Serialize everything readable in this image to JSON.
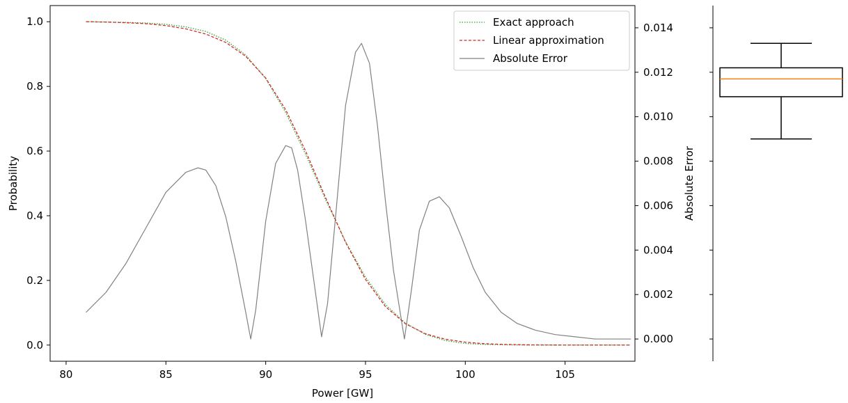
{
  "chart_data": [
    {
      "type": "line",
      "xlabel": "Power [GW]",
      "ylabel": "Probability",
      "y2label": "Absolute Error",
      "xlim": [
        79.2,
        108.5
      ],
      "ylim": [
        -0.05,
        1.05
      ],
      "y2lim": [
        -0.001,
        0.015
      ],
      "xticks": [
        80,
        85,
        90,
        95,
        100,
        105
      ],
      "xtick_labels": [
        "80",
        "85",
        "90",
        "95",
        "100",
        "105"
      ],
      "yticks": [
        0.0,
        0.2,
        0.4,
        0.6,
        0.8,
        1.0
      ],
      "ytick_labels": [
        "0.0",
        "0.2",
        "0.4",
        "0.6",
        "0.8",
        "1.0"
      ],
      "y2ticks": [
        0.0,
        0.002,
        0.004,
        0.006,
        0.008,
        0.01,
        0.012,
        0.014
      ],
      "y2tick_labels": [
        "0.000",
        "0.002",
        "0.004",
        "0.006",
        "0.008",
        "0.010",
        "0.012",
        "0.014"
      ],
      "grid": false,
      "legend_position": "top-right",
      "series": [
        {
          "name": "Exact approach",
          "axis": "left",
          "color": "#2ca02c",
          "style": "dotted",
          "x": [
            81,
            82,
            83,
            84,
            85,
            86,
            87,
            88,
            89,
            90,
            91,
            92,
            93,
            94,
            95,
            96,
            97,
            98,
            99,
            100,
            101,
            102,
            103,
            104,
            105,
            106,
            107,
            108.3
          ],
          "y": [
            1.0,
            0.999,
            0.998,
            0.996,
            0.992,
            0.984,
            0.97,
            0.943,
            0.897,
            0.824,
            0.72,
            0.59,
            0.45,
            0.32,
            0.21,
            0.125,
            0.068,
            0.033,
            0.014,
            0.005,
            0.002,
            0.0007,
            0.0002,
            0.0001,
            0.0,
            0.0,
            0.0,
            0.0
          ]
        },
        {
          "name": "Linear approximation",
          "axis": "left",
          "color": "#d62728",
          "style": "dashed",
          "x": [
            81,
            82,
            83,
            84,
            85,
            86,
            87,
            88,
            89,
            90,
            91,
            92,
            93,
            94,
            95,
            96,
            97,
            98,
            99,
            100,
            101,
            102,
            103,
            104,
            105,
            106,
            107,
            108.3
          ],
          "y": [
            1.0,
            0.999,
            0.997,
            0.994,
            0.988,
            0.978,
            0.962,
            0.936,
            0.893,
            0.826,
            0.728,
            0.6,
            0.456,
            0.318,
            0.203,
            0.119,
            0.066,
            0.035,
            0.018,
            0.009,
            0.004,
            0.002,
            0.0008,
            0.0003,
            0.0001,
            0.0,
            0.0,
            0.0
          ]
        },
        {
          "name": "Absolute Error",
          "axis": "right",
          "color": "#808080",
          "style": "solid",
          "x": [
            81,
            82,
            83,
            84,
            85,
            86,
            86.6,
            87,
            87.5,
            88,
            88.5,
            89,
            89.25,
            89.5,
            90,
            90.5,
            91,
            91.3,
            91.6,
            92,
            92.4,
            92.8,
            93.1,
            93.5,
            94,
            94.5,
            94.8,
            95.2,
            95.6,
            96,
            96.4,
            96.95,
            97.3,
            97.7,
            98.2,
            98.7,
            99.2,
            99.8,
            100.4,
            101,
            101.8,
            102.6,
            103.5,
            104.5,
            105.5,
            106.5,
            107.5,
            108.3
          ],
          "y": [
            0.0012,
            0.0021,
            0.0034,
            0.005,
            0.0066,
            0.0075,
            0.0077,
            0.0076,
            0.0069,
            0.0055,
            0.0035,
            0.0012,
            0.0,
            0.0013,
            0.0053,
            0.0079,
            0.0087,
            0.0086,
            0.0076,
            0.0053,
            0.0027,
            0.0001,
            0.0016,
            0.0055,
            0.0105,
            0.0129,
            0.0133,
            0.0124,
            0.0096,
            0.0062,
            0.0031,
            0.0,
            0.0022,
            0.0049,
            0.0062,
            0.0064,
            0.0059,
            0.0046,
            0.0032,
            0.0021,
            0.0012,
            0.0007,
            0.0004,
            0.0002,
            0.0001,
            0.0,
            0.0,
            0.0
          ]
        }
      ]
    },
    {
      "type": "box",
      "ylim": [
        -0.001,
        0.015
      ],
      "median": 0.0117,
      "q1": 0.0109,
      "q3": 0.0122,
      "whisker_low": 0.009,
      "whisker_high": 0.0133,
      "box_color": "#000000",
      "median_color": "#ff7f0e"
    }
  ]
}
